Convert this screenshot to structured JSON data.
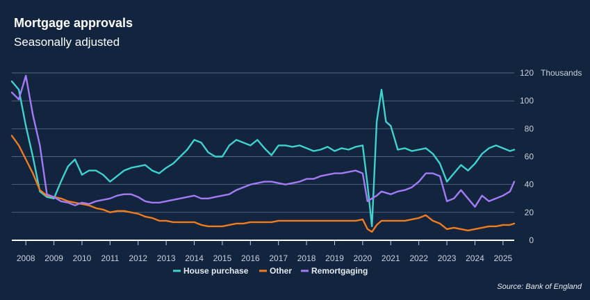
{
  "chart_data": {
    "type": "line",
    "title": "Mortgage approvals",
    "subtitle": "Seasonally adjusted",
    "unit": "Thousands",
    "source": "Source: Bank of England",
    "xlim": [
      2007.5,
      2025.4
    ],
    "ylim": [
      0,
      120
    ],
    "y_ticks": [
      "0",
      "20",
      "40",
      "60",
      "80",
      "100",
      "120"
    ],
    "x_ticks": [
      "2008",
      "2009",
      "2010",
      "2011",
      "2012",
      "2013",
      "2014",
      "2015",
      "2016",
      "2017",
      "2018",
      "2019",
      "2020",
      "2021",
      "2022",
      "2023",
      "2024",
      "2025"
    ],
    "grid": true,
    "legend_position": "bottom",
    "x": [
      2007.5,
      2007.75,
      2008.0,
      2008.25,
      2008.5,
      2008.75,
      2009.0,
      2009.25,
      2009.5,
      2009.75,
      2010.0,
      2010.25,
      2010.5,
      2010.75,
      2011.0,
      2011.25,
      2011.5,
      2011.75,
      2012.0,
      2012.25,
      2012.5,
      2012.75,
      2013.0,
      2013.25,
      2013.5,
      2013.75,
      2014.0,
      2014.25,
      2014.5,
      2014.75,
      2015.0,
      2015.25,
      2015.5,
      2015.75,
      2016.0,
      2016.25,
      2016.5,
      2016.75,
      2017.0,
      2017.25,
      2017.5,
      2017.75,
      2018.0,
      2018.25,
      2018.5,
      2018.75,
      2019.0,
      2019.25,
      2019.5,
      2019.75,
      2020.0,
      2020.17,
      2020.33,
      2020.5,
      2020.67,
      2020.83,
      2021.0,
      2021.25,
      2021.5,
      2021.75,
      2022.0,
      2022.25,
      2022.5,
      2022.75,
      2023.0,
      2023.25,
      2023.5,
      2023.75,
      2024.0,
      2024.25,
      2024.5,
      2024.75,
      2025.0,
      2025.25,
      2025.4
    ],
    "series": [
      {
        "name": "House purchase",
        "color": "#3fd2cf",
        "values": [
          114,
          108,
          82,
          60,
          35,
          31,
          30,
          42,
          53,
          58,
          47,
          50,
          50,
          47,
          42,
          46,
          50,
          52,
          53,
          54,
          50,
          48,
          52,
          55,
          60,
          65,
          72,
          70,
          63,
          60,
          60,
          68,
          72,
          70,
          68,
          72,
          66,
          61,
          68,
          68,
          67,
          68,
          66,
          64,
          65,
          67,
          64,
          66,
          65,
          67,
          68,
          40,
          10,
          85,
          108,
          85,
          82,
          65,
          66,
          64,
          65,
          66,
          62,
          55,
          42,
          48,
          54,
          50,
          55,
          62,
          66,
          68,
          66,
          64,
          65
        ]
      },
      {
        "name": "Other",
        "color": "#f07c1d",
        "values": [
          75,
          68,
          58,
          48,
          36,
          32,
          31,
          30,
          28,
          27,
          26,
          25,
          23,
          22,
          20,
          21,
          21,
          20,
          19,
          17,
          16,
          14,
          14,
          13,
          13,
          13,
          13,
          11,
          10,
          10,
          10,
          11,
          12,
          12,
          13,
          13,
          13,
          13,
          14,
          14,
          14,
          14,
          14,
          14,
          14,
          14,
          14,
          14,
          14,
          14,
          15,
          8,
          6,
          11,
          14,
          14,
          14,
          14,
          14,
          15,
          16,
          18,
          14,
          12,
          8,
          9,
          8,
          7,
          8,
          9,
          10,
          10,
          11,
          11,
          12
        ]
      },
      {
        "name": "Remortgaging",
        "color": "#a37cf5",
        "values": [
          106,
          101,
          118,
          90,
          68,
          33,
          31,
          28,
          27,
          25,
          27,
          26,
          28,
          29,
          30,
          32,
          33,
          33,
          31,
          28,
          27,
          27,
          28,
          29,
          30,
          31,
          32,
          30,
          30,
          31,
          32,
          33,
          36,
          38,
          40,
          41,
          42,
          42,
          41,
          40,
          41,
          42,
          44,
          44,
          46,
          47,
          48,
          48,
          49,
          50,
          48,
          28,
          30,
          32,
          35,
          34,
          33,
          35,
          36,
          38,
          42,
          48,
          48,
          46,
          28,
          30,
          36,
          30,
          24,
          32,
          28,
          30,
          32,
          35,
          42
        ]
      }
    ]
  }
}
